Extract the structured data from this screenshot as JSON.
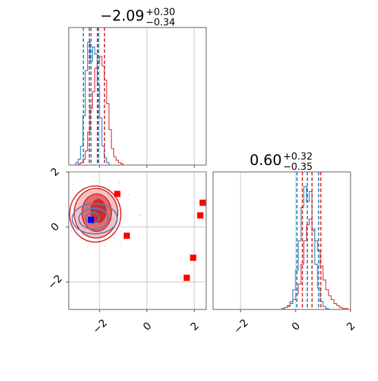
{
  "chart_data": {
    "type": "corner",
    "colors": {
      "primary": "#d62728",
      "secondary": "#1f77b4",
      "marker_blue": "#0000ff",
      "grid": "#b0b0b0"
    },
    "param1": {
      "title_main": "−2.09",
      "title_sup": "+0.30",
      "title_sub": "−0.34",
      "range": [
        -3.3,
        2.5
      ],
      "ticks": [
        {
          "v": -2,
          "label": "−2"
        },
        {
          "v": 0,
          "label": "0"
        },
        {
          "v": 2,
          "label": "2"
        }
      ],
      "grid": [
        -2,
        0,
        2
      ],
      "red_quantiles": [
        -2.43,
        -2.09,
        -1.79
      ],
      "blue_quantiles": [
        -2.68,
        -2.36,
        -2.05
      ]
    },
    "param2": {
      "title_main": "0.60",
      "title_sup": "+0.32",
      "title_sub": "−0.35",
      "range": [
        -3.0,
        2.0
      ],
      "ticks": [
        {
          "v": -2,
          "label": "−2"
        },
        {
          "v": 0,
          "label": "0"
        },
        {
          "v": 2,
          "label": "2"
        }
      ],
      "grid": [
        -2,
        0
      ],
      "red_quantiles": [
        0.25,
        0.6,
        0.92
      ],
      "blue_quantiles": [
        0.05,
        0.43,
        0.84
      ]
    },
    "hist1_red": {
      "edges": [
        -2.9,
        -2.8,
        -2.7,
        -2.6,
        -2.5,
        -2.4,
        -2.3,
        -2.2,
        -2.1,
        -2.0,
        -1.9,
        -1.8,
        -1.7,
        -1.6,
        -1.5,
        -1.4,
        -1.3,
        -1.2,
        -1.1,
        -1.0,
        -0.9,
        -0.8
      ],
      "counts": [
        1,
        2,
        5,
        12,
        28,
        48,
        62,
        82,
        86,
        92,
        84,
        72,
        52,
        30,
        14,
        7,
        4,
        2,
        1,
        0,
        0
      ]
    },
    "hist1_blue": {
      "edges": [
        -3.0,
        -2.9,
        -2.8,
        -2.7,
        -2.6,
        -2.5,
        -2.4,
        -2.3,
        -2.2,
        -2.1,
        -2.0,
        -1.9,
        -1.8,
        -1.7,
        -1.6
      ],
      "counts": [
        2,
        5,
        16,
        42,
        80,
        104,
        88,
        100,
        94,
        68,
        40,
        16,
        6,
        2
      ]
    },
    "hist2_red": {
      "edges": [
        -0.5,
        -0.4,
        -0.3,
        -0.2,
        -0.1,
        0.0,
        0.1,
        0.2,
        0.3,
        0.4,
        0.5,
        0.6,
        0.7,
        0.8,
        0.9,
        1.0,
        1.1,
        1.2,
        1.3,
        1.4,
        1.5,
        1.6,
        1.7,
        1.8,
        1.9,
        2.0
      ],
      "counts": [
        1,
        2,
        3,
        6,
        10,
        16,
        26,
        46,
        70,
        86,
        92,
        82,
        70,
        60,
        44,
        30,
        20,
        14,
        10,
        6,
        4,
        2,
        1,
        1,
        0
      ]
    },
    "hist2_blue": {
      "edges": [
        -0.4,
        -0.3,
        -0.2,
        -0.1,
        0.0,
        0.1,
        0.2,
        0.3,
        0.4,
        0.5,
        0.6,
        0.7,
        0.8,
        0.9,
        1.0,
        1.1,
        1.2
      ],
      "counts": [
        2,
        4,
        8,
        20,
        40,
        70,
        104,
        125,
        110,
        120,
        80,
        46,
        22,
        8,
        3,
        1
      ]
    },
    "red_markers": [
      {
        "x": -1.25,
        "y": 1.2
      },
      {
        "x": -0.85,
        "y": -0.32
      },
      {
        "x": 2.35,
        "y": 0.88
      },
      {
        "x": 2.25,
        "y": 0.42
      },
      {
        "x": 1.95,
        "y": -1.12
      },
      {
        "x": 1.68,
        "y": -1.85
      }
    ],
    "blue_marker": {
      "x": -2.36,
      "y": 0.26
    },
    "contours_red": [
      {
        "cx": -2.05,
        "cy": 0.58,
        "rx": 0.32,
        "ry": 0.42,
        "fill": "#c62828",
        "opacity": 0.9
      },
      {
        "cx": -2.12,
        "cy": 0.52,
        "rx": 0.62,
        "ry": 0.68,
        "fill": "#e05858",
        "opacity": 0.8
      },
      {
        "cx": -2.15,
        "cy": 0.5,
        "rx": 0.92,
        "ry": 0.9,
        "fill": "#f2aaaa",
        "opacity": 0.7
      },
      {
        "cx": -2.18,
        "cy": 0.47,
        "rx": 1.08,
        "ry": 1.02,
        "fill": "none",
        "opacity": 1
      }
    ],
    "contours_blue": [
      {
        "cx": -2.3,
        "cy": 0.32,
        "rx": 0.28,
        "ry": 0.2
      },
      {
        "cx": -2.25,
        "cy": 0.3,
        "rx": 0.62,
        "ry": 0.38
      },
      {
        "cx": -2.2,
        "cy": 0.3,
        "rx": 0.95,
        "ry": 0.55
      }
    ]
  }
}
